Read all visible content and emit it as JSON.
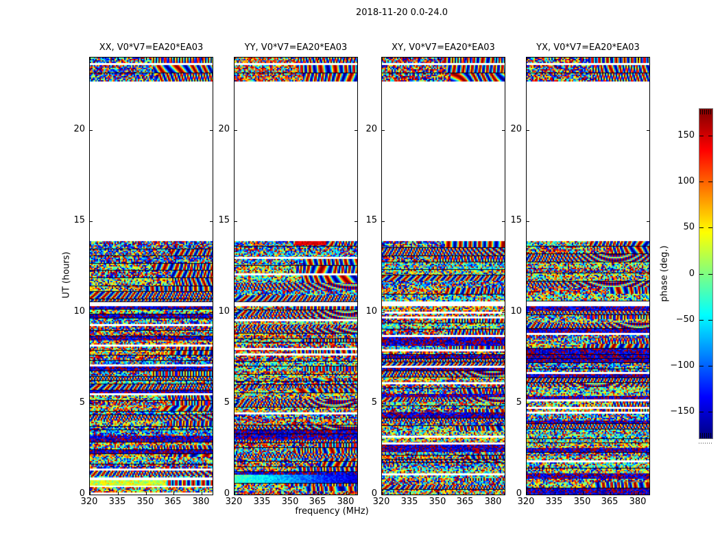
{
  "figure": {
    "title": "2018-11-20 0.0-24.0",
    "xlabel": "frequency (MHz)",
    "ylabel": "UT (hours)",
    "colorbar_label": "phase (deg.)"
  },
  "chart_data": {
    "type": "heatmap",
    "title": "2018-11-20 0.0-24.0",
    "xlabel": "frequency (MHz)",
    "ylabel": "UT (hours)",
    "panels": [
      {
        "label": "XX",
        "title": "XX, V0*V7=EA20*EA03"
      },
      {
        "label": "YY",
        "title": "YY, V0*V7=EA20*EA03"
      },
      {
        "label": "XY",
        "title": "XY, V0*V7=EA20*EA03"
      },
      {
        "label": "YX",
        "title": "YX, V0*V7=EA20*EA03"
      }
    ],
    "x_ticks": [
      320,
      335,
      350,
      365,
      380
    ],
    "x_tick_labels": [
      "320",
      "335",
      "350",
      "365",
      "380"
    ],
    "y_ticks": [
      0,
      5,
      10,
      15,
      20
    ],
    "y_tick_labels": [
      "0",
      "5",
      "10",
      "15",
      "20"
    ],
    "x_range_mhz": [
      320,
      386.5
    ],
    "y_range_hours": [
      0,
      24
    ],
    "value_units": "phase (deg.)",
    "value_range": [
      -180,
      180
    ],
    "colormap": "jet",
    "grid": false,
    "colorbar": {
      "label": "phase (deg.)",
      "tick_values": [
        150,
        100,
        50,
        0,
        -50,
        -100,
        -150
      ],
      "tick_labels": [
        "150",
        "100",
        "50",
        "0",
        "−50",
        "−100",
        "−150"
      ],
      "range": [
        -180,
        180
      ],
      "orientation": "vertical"
    },
    "ut_coverage_hours": [
      [
        0.0,
        10.35
      ],
      [
        10.61,
        13.92
      ],
      [
        22.73,
        23.58
      ],
      [
        23.7,
        24.0
      ]
    ],
    "data_kind": "pseudo-random interferometric phase noise spanning -180..180 deg, organized in horizontal scan bands separated by thin dark lines and occasional white (flagged) gaps; coherent rainbow fringe/chirp patterns toward higher frequencies",
    "render_hints": {
      "seed": 987654321,
      "panel_top_band_tint": [
        0.6,
        0.35,
        0.45,
        0.5
      ],
      "panel_features": [
        {
          "yellow_band_ut": [
            0.5,
            0.78
          ],
          "white_band_ut": [
            0.78,
            0.95
          ],
          "mid_block_top": "yellow-green line"
        },
        {
          "cyan_blue_band_ut": [
            0.65,
            1.1
          ],
          "mid_block_red_patch": true
        },
        {},
        {}
      ]
    }
  }
}
